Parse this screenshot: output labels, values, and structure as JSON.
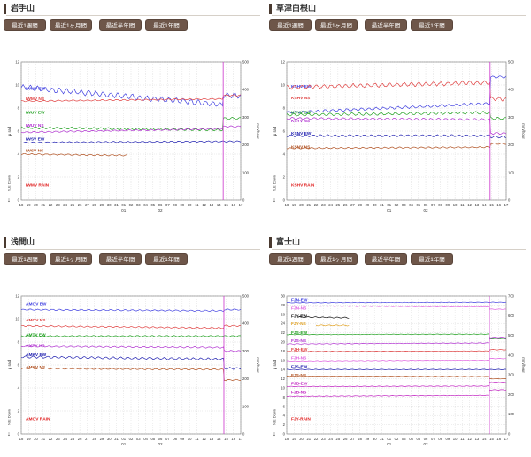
{
  "buttons": [
    "最近1週間",
    "最近1ヶ月間",
    "最近半年間",
    "最近1年間"
  ],
  "panels": [
    {
      "title": "岩手山"
    },
    {
      "title": "草津白根山"
    },
    {
      "title": "浅間山"
    },
    {
      "title": "富士山"
    }
  ],
  "colors": {
    "button_bg": "#6e5649",
    "grid": "#c8c8c8",
    "event_line": "#cc33cc"
  },
  "chart_data": [
    {
      "type": "line",
      "title": "岩手山",
      "ylabel": "μ rad",
      "y2label": "mm/hour",
      "down_label": "N,E Down",
      "ylim": [
        0,
        12
      ],
      "y_ticks": [
        0,
        2,
        4,
        6,
        8,
        10,
        12
      ],
      "y2lim": [
        0,
        500
      ],
      "y2_ticks": [
        0,
        100,
        200,
        300,
        400,
        500
      ],
      "x_ticks": [
        "18",
        "19",
        "20",
        "21",
        "22",
        "23",
        "24",
        "25",
        "26",
        "27",
        "28",
        "29",
        "30",
        "31",
        "01",
        "02",
        "03",
        "04",
        "05",
        "06",
        "07",
        "08",
        "09",
        "10",
        "11",
        "12",
        "13",
        "14",
        "15",
        "16",
        "17"
      ],
      "month_labels": [
        {
          "label": "01",
          "index": 14
        },
        {
          "label": "02",
          "index": 19
        }
      ],
      "event_index": 27.6,
      "series": [
        {
          "name": "IWMV EW",
          "color": "#4040e0",
          "start": 9.8,
          "end": 8.3,
          "jump": 0.8,
          "wiggle": 0.2,
          "label_y": 9.7
        },
        {
          "name": "IWMV NS",
          "color": "#e04040",
          "start": 8.6,
          "end": 8.8,
          "jump": 0.3,
          "wiggle": 0.05,
          "label_y": 8.8
        },
        {
          "name": "IWUV EW",
          "color": "#20a020",
          "start": 6.3,
          "end": 6.1,
          "jump": 1.0,
          "wiggle": 0.08,
          "label_y": 7.6
        },
        {
          "name": "IWUV NS",
          "color": "#b030d0",
          "start": 5.9,
          "end": 6.2,
          "jump": 0.2,
          "wiggle": 0.05,
          "label_y": 6.5
        },
        {
          "name": "IWSV EW",
          "color": "#2020b0",
          "start": 5.0,
          "end": 5.1,
          "jump": 0.0,
          "wiggle": 0.05,
          "label_y": 5.3
        },
        {
          "name": "IWSV NS",
          "color": "#b05020",
          "start": 4.0,
          "end": 3.8,
          "jump": 0.0,
          "wiggle": 0.05,
          "label_y": 4.3,
          "end_index": 14.5
        }
      ],
      "rain_label": "IWMV RAIN"
    },
    {
      "type": "line",
      "title": "草津白根山",
      "ylabel": "μ rad",
      "y2label": "mm/hour",
      "down_label": "N,E Down",
      "ylim": [
        0,
        12
      ],
      "y_ticks": [
        0,
        2,
        4,
        6,
        8,
        10,
        12
      ],
      "y2lim": [
        0,
        500
      ],
      "y2_ticks": [
        0,
        100,
        200,
        300,
        400,
        500
      ],
      "x_ticks": [
        "18",
        "19",
        "20",
        "21",
        "22",
        "23",
        "24",
        "25",
        "26",
        "27",
        "28",
        "29",
        "30",
        "31",
        "01",
        "02",
        "03",
        "04",
        "05",
        "06",
        "07",
        "08",
        "09",
        "10",
        "11",
        "12",
        "13",
        "14",
        "15",
        "16",
        "17"
      ],
      "month_labels": [
        {
          "label": "01",
          "index": 14
        },
        {
          "label": "02",
          "index": 19
        }
      ],
      "event_index": 27.8,
      "series": [
        {
          "name": "KSHV EW",
          "color": "#4040e0",
          "start": 7.6,
          "end": 8.4,
          "jump": 2.3,
          "wiggle": 0.1,
          "label_y": 9.9
        },
        {
          "name": "KSHV NS",
          "color": "#e04040",
          "start": 9.8,
          "end": 10.2,
          "jump": -1.4,
          "wiggle": 0.15,
          "label_y": 8.9
        },
        {
          "name": "KSYV EW",
          "color": "#20a020",
          "start": 7.4,
          "end": 7.6,
          "jump": -0.5,
          "wiggle": 0.1,
          "label_y": 7.6
        },
        {
          "name": "KSYV NS",
          "color": "#b030d0",
          "start": 7.1,
          "end": 7.0,
          "jump": -1.2,
          "wiggle": 0.08,
          "label_y": 6.9
        },
        {
          "name": "KSNV EW",
          "color": "#2020b0",
          "start": 5.6,
          "end": 5.6,
          "jump": -0.1,
          "wiggle": 0.08,
          "label_y": 5.8
        },
        {
          "name": "KSNV NS",
          "color": "#b05020",
          "start": 4.5,
          "end": 4.6,
          "jump": 0.3,
          "wiggle": 0.05,
          "label_y": 4.6
        }
      ],
      "rain_label": "KSHV RAIN"
    },
    {
      "type": "line",
      "title": "浅間山",
      "ylabel": "μ rad",
      "y2label": "mm/hour",
      "down_label": "N,E Down",
      "ylim": [
        0,
        12
      ],
      "y_ticks": [
        0,
        2,
        4,
        6,
        8,
        10,
        12
      ],
      "y2lim": [
        0,
        500
      ],
      "y2_ticks": [
        0,
        100,
        200,
        300,
        400,
        500
      ],
      "x_ticks": [
        "18",
        "19",
        "20",
        "21",
        "22",
        "23",
        "24",
        "25",
        "26",
        "27",
        "28",
        "29",
        "30",
        "31",
        "01",
        "02",
        "03",
        "04",
        "05",
        "06",
        "07",
        "08",
        "09",
        "10",
        "11",
        "12",
        "13",
        "14",
        "15",
        "16",
        "17"
      ],
      "month_labels": [
        {
          "label": "01",
          "index": 14
        },
        {
          "label": "02",
          "index": 19
        }
      ],
      "event_index": 27.7,
      "series": [
        {
          "name": "AMOV EW",
          "color": "#4040e0",
          "start": 10.8,
          "end": 10.7,
          "jump": 0.1,
          "wiggle": 0.05,
          "label_y": 11.3
        },
        {
          "name": "AMOV NS",
          "color": "#e04040",
          "start": 9.4,
          "end": 9.2,
          "jump": 0.2,
          "wiggle": 0.05,
          "label_y": 9.9
        },
        {
          "name": "AMTV EW",
          "color": "#20a020",
          "start": 8.5,
          "end": 8.5,
          "jump": 0.0,
          "wiggle": 0.05,
          "label_y": 8.6
        },
        {
          "name": "AMTV NS",
          "color": "#b030d0",
          "start": 7.6,
          "end": 7.5,
          "jump": -0.3,
          "wiggle": 0.05,
          "label_y": 7.7
        },
        {
          "name": "AMKV EW",
          "color": "#2020b0",
          "start": 6.7,
          "end": 6.5,
          "jump": -0.8,
          "wiggle": 0.08,
          "label_y": 6.9
        },
        {
          "name": "AMKV NS",
          "color": "#b05020",
          "start": 5.7,
          "end": 5.6,
          "jump": -0.9,
          "wiggle": 0.05,
          "label_y": 5.8
        }
      ],
      "rain_label": "AMOV RAIN"
    },
    {
      "type": "line",
      "title": "富士山",
      "ylabel": "μ rad",
      "y2label": "mm/hour",
      "down_label": "N,E Down",
      "ylim": [
        0,
        30
      ],
      "y_ticks": [
        0,
        2,
        4,
        6,
        8,
        10,
        12,
        14,
        16,
        18,
        20,
        22,
        24,
        26,
        28,
        30
      ],
      "y2lim": [
        0,
        700
      ],
      "y2_ticks": [
        0,
        100,
        200,
        300,
        400,
        500,
        600,
        700
      ],
      "x_ticks": [
        "18",
        "19",
        "20",
        "21",
        "22",
        "23",
        "24",
        "25",
        "26",
        "27",
        "28",
        "29",
        "30",
        "31",
        "01",
        "02",
        "03",
        "04",
        "05",
        "06",
        "07",
        "08",
        "09",
        "10",
        "11",
        "12",
        "13",
        "14",
        "15",
        "16",
        "17"
      ],
      "month_labels": [
        {
          "label": "01",
          "index": 14
        },
        {
          "label": "02",
          "index": 19
        }
      ],
      "event_index": 27.7,
      "series": [
        {
          "name": "FJN-EW",
          "color": "#4040e0",
          "start": 28.5,
          "end": 28.6,
          "jump": 0.0,
          "wiggle": 0.05,
          "label_y": 29.0
        },
        {
          "name": "FJN-NS",
          "color": "#e060e0",
          "start": 27.8,
          "end": 27.6,
          "jump": -0.5,
          "wiggle": 0.05,
          "label_y": 27.3
        },
        {
          "name": "FJY-EW",
          "color": "#111111",
          "start": 25.4,
          "end": 24.8,
          "jump": 0.0,
          "wiggle": 0.1,
          "label_y": 25.6,
          "start_index": 1.5,
          "end_index": 8.5
        },
        {
          "name": "FJY-NS",
          "color": "#e0a020",
          "start": 23.6,
          "end": 23.5,
          "jump": 0.0,
          "wiggle": 0.1,
          "label_y": 23.9,
          "start_index": 4.0,
          "end_index": 8.5
        },
        {
          "name": "FJS-EW",
          "color": "#20a020",
          "start": 21.6,
          "end": 21.7,
          "jump": -1.0,
          "wiggle": 0.05,
          "label_y": 22.0
        },
        {
          "name": "FJS-NS",
          "color": "#b030d0",
          "start": 19.6,
          "end": 19.8,
          "jump": 1.0,
          "wiggle": 0.05,
          "label_y": 20.3
        },
        {
          "name": "FJH-EW",
          "color": "#e04040",
          "start": 17.9,
          "end": 18.0,
          "jump": 0.3,
          "wiggle": 0.05,
          "label_y": 18.4
        },
        {
          "name": "FJH-NS",
          "color": "#e060e0",
          "start": 15.7,
          "end": 15.9,
          "jump": 0.5,
          "wiggle": 0.05,
          "label_y": 16.5
        },
        {
          "name": "FJS-EW",
          "color": "#2020b0",
          "start": 14.0,
          "end": 14.0,
          "jump": 0.0,
          "wiggle": 0.05,
          "label_y": 14.6
        },
        {
          "name": "FJS-NS",
          "color": "#b05020",
          "start": 12.4,
          "end": 12.5,
          "jump": -0.5,
          "wiggle": 0.05,
          "label_y": 12.8
        },
        {
          "name": "FJB-EW",
          "color": "#c020c0",
          "start": 10.3,
          "end": 10.4,
          "jump": 0.8,
          "wiggle": 0.05,
          "label_y": 11.0
        },
        {
          "name": "FJB-NS",
          "color": "#c020c0",
          "start": 8.2,
          "end": 8.4,
          "jump": 1.2,
          "wiggle": 0.05,
          "label_y": 9.0
        }
      ],
      "rain_label": "FJY-RAIN"
    }
  ]
}
